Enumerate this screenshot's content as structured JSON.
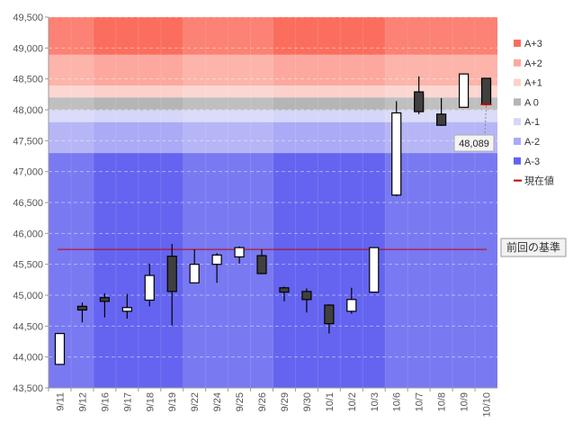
{
  "chart_data": {
    "type": "candlestick",
    "ylim": [
      43500,
      49500
    ],
    "yticks": [
      43500,
      44000,
      44500,
      45000,
      45500,
      46000,
      46500,
      47000,
      47500,
      48000,
      48500,
      49000,
      49500
    ],
    "ytick_labels": [
      "43,500",
      "44,000",
      "44,500",
      "45,000",
      "45,500",
      "46,000",
      "46,500",
      "47,000",
      "47,500",
      "48,000",
      "48,500",
      "49,000",
      "49,500"
    ],
    "categories": [
      "9/11",
      "9/12",
      "9/16",
      "9/17",
      "9/18",
      "9/19",
      "9/22",
      "9/24",
      "9/25",
      "9/26",
      "9/29",
      "9/30",
      "10/1",
      "10/2",
      "10/3",
      "10/6",
      "10/7",
      "10/8",
      "10/9",
      "10/10"
    ],
    "candles": [
      {
        "open": 43880,
        "high": 44380,
        "low": 43880,
        "close": 44380
      },
      {
        "open": 44820,
        "high": 44880,
        "low": 44560,
        "close": 44760
      },
      {
        "open": 44960,
        "high": 45030,
        "low": 44640,
        "close": 44900
      },
      {
        "open": 44740,
        "high": 45020,
        "low": 44620,
        "close": 44800
      },
      {
        "open": 44920,
        "high": 45510,
        "low": 44820,
        "close": 45320
      },
      {
        "open": 45630,
        "high": 45830,
        "low": 44510,
        "close": 45060
      },
      {
        "open": 45200,
        "high": 45740,
        "low": 45200,
        "close": 45500
      },
      {
        "open": 45500,
        "high": 45680,
        "low": 45200,
        "close": 45650
      },
      {
        "open": 45620,
        "high": 45790,
        "low": 45510,
        "close": 45770
      },
      {
        "open": 45640,
        "high": 45740,
        "low": 45340,
        "close": 45350
      },
      {
        "open": 45120,
        "high": 45140,
        "low": 44900,
        "close": 45050
      },
      {
        "open": 45060,
        "high": 45110,
        "low": 44720,
        "close": 44930
      },
      {
        "open": 44840,
        "high": 44850,
        "low": 44380,
        "close": 44540
      },
      {
        "open": 44740,
        "high": 45120,
        "low": 44700,
        "close": 44930
      },
      {
        "open": 45050,
        "high": 45770,
        "low": 45050,
        "close": 45770
      },
      {
        "open": 46620,
        "high": 48140,
        "low": 46600,
        "close": 47950
      },
      {
        "open": 48290,
        "high": 48540,
        "low": 47930,
        "close": 47970
      },
      {
        "open": 47930,
        "high": 48190,
        "low": 47740,
        "close": 47750
      },
      {
        "open": 48040,
        "high": 48580,
        "low": 48040,
        "close": 48580
      },
      {
        "open": 48510,
        "high": 48510,
        "low": 48070,
        "close": 48089
      }
    ],
    "bands": [
      {
        "name": "A+3",
        "from": 48890,
        "to": 49500,
        "color": "#fb6e5e"
      },
      {
        "name": "A+2",
        "from": 48390,
        "to": 48890,
        "color": "#fca89e"
      },
      {
        "name": "A+1",
        "from": 48200,
        "to": 48390,
        "color": "#fcd1cb"
      },
      {
        "name": "A 0",
        "from": 47990,
        "to": 48200,
        "color": "#b5b5b5"
      },
      {
        "name": "A-1",
        "from": 47800,
        "to": 47990,
        "color": "#d6d6fa"
      },
      {
        "name": "A-2",
        "from": 47300,
        "to": 47800,
        "color": "#aaaaf6"
      },
      {
        "name": "A-3",
        "from": 43500,
        "to": 47300,
        "color": "#6464f0"
      }
    ],
    "current_value": 48089,
    "current_value_label": "48,089",
    "current_line_color": "#c00000",
    "previous_reference": 45740,
    "previous_reference_label": "前回の基準",
    "legend": [
      {
        "name": "A+3",
        "color": "#fb6e5e",
        "kind": "box"
      },
      {
        "name": "A+2",
        "color": "#fca89e",
        "kind": "box"
      },
      {
        "name": "A+1",
        "color": "#fcd1cb",
        "kind": "box"
      },
      {
        "name": "A 0",
        "color": "#b5b5b5",
        "kind": "box"
      },
      {
        "name": "A-1",
        "color": "#d6d6fa",
        "kind": "box"
      },
      {
        "name": "A-2",
        "color": "#aaaaf6",
        "kind": "box"
      },
      {
        "name": "A-3",
        "color": "#6464f0",
        "kind": "box"
      },
      {
        "name": "現在値",
        "color": "#c00000",
        "kind": "line"
      }
    ],
    "legend_position": "right",
    "grid": true,
    "up_color": "#ffffff",
    "down_color": "#404040"
  }
}
